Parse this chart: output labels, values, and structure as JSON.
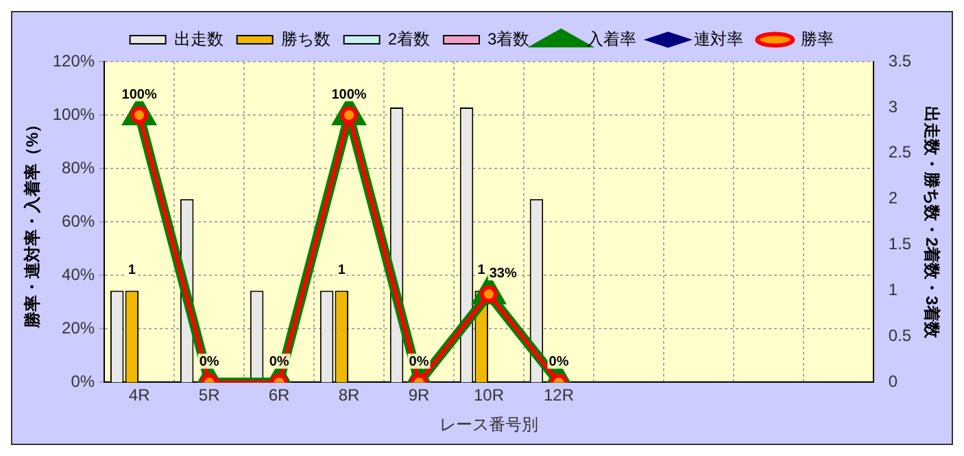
{
  "chart_data": {
    "type": "bar",
    "xlabel": "レース番号別",
    "ylabel": "勝率・連対率・入着率（%）",
    "y2label": "出走数・勝ち数・2着数・3着数",
    "categories": [
      "4R",
      "5R",
      "6R",
      "8R",
      "9R",
      "10R",
      "12R",
      null,
      null,
      null,
      null
    ],
    "series": [
      {
        "name": "出走数",
        "type": "bar",
        "axis": "y2",
        "color": "#e8e8e8",
        "values": [
          1,
          2,
          1,
          1,
          3,
          3,
          2,
          null,
          null,
          null,
          null
        ]
      },
      {
        "name": "勝ち数",
        "type": "bar",
        "axis": "y2",
        "color": "#f0b800",
        "values": [
          1,
          0,
          0,
          1,
          0,
          1,
          0,
          null,
          null,
          null,
          null
        ],
        "value_labels": [
          "1",
          null,
          null,
          "1",
          null,
          "1",
          null,
          null,
          null,
          null,
          null
        ]
      },
      {
        "name": "2着数",
        "type": "bar",
        "axis": "y2",
        "color": "#c8f0f0",
        "values": [
          0,
          0,
          0,
          0,
          0,
          0,
          0,
          null,
          null,
          null,
          null
        ]
      },
      {
        "name": "3着数",
        "type": "bar",
        "axis": "y2",
        "color": "#f0a0c8",
        "values": [
          0,
          0,
          0,
          0,
          0,
          0,
          0,
          null,
          null,
          null,
          null
        ]
      },
      {
        "name": "入着率",
        "type": "line",
        "axis": "y",
        "color": "#008000",
        "marker": "triangle",
        "values": [
          100,
          0,
          0,
          100,
          0,
          33,
          0,
          null,
          null,
          null,
          null
        ]
      },
      {
        "name": "連対率",
        "type": "line",
        "axis": "y",
        "color": "#000080",
        "marker": "diamond",
        "values": [
          null,
          null,
          null,
          null,
          null,
          null,
          null,
          null,
          null,
          null,
          null
        ]
      },
      {
        "name": "勝率",
        "type": "line",
        "axis": "y",
        "color": "#ff0000",
        "marker": "circle",
        "values": [
          100,
          0,
          0,
          100,
          0,
          33,
          0,
          null,
          null,
          null,
          null
        ],
        "value_labels": [
          "100%",
          "0%",
          "0%",
          "100%",
          "0%",
          "33%",
          "0%",
          null,
          null,
          null,
          null
        ]
      }
    ],
    "ylim": [
      0,
      120
    ],
    "yticks": [
      {
        "value": 0,
        "label": "0%"
      },
      {
        "value": 20,
        "label": "20%"
      },
      {
        "value": 40,
        "label": "40%"
      },
      {
        "value": 60,
        "label": "60%"
      },
      {
        "value": 80,
        "label": "80%"
      },
      {
        "value": 100,
        "label": "100%"
      },
      {
        "value": 120,
        "label": "120%"
      }
    ],
    "y2lim": [
      0,
      3.5
    ],
    "y2ticks": [
      0,
      0.5,
      1,
      1.5,
      2,
      2.5,
      3,
      3.5
    ],
    "grid": true,
    "legend": "top"
  }
}
